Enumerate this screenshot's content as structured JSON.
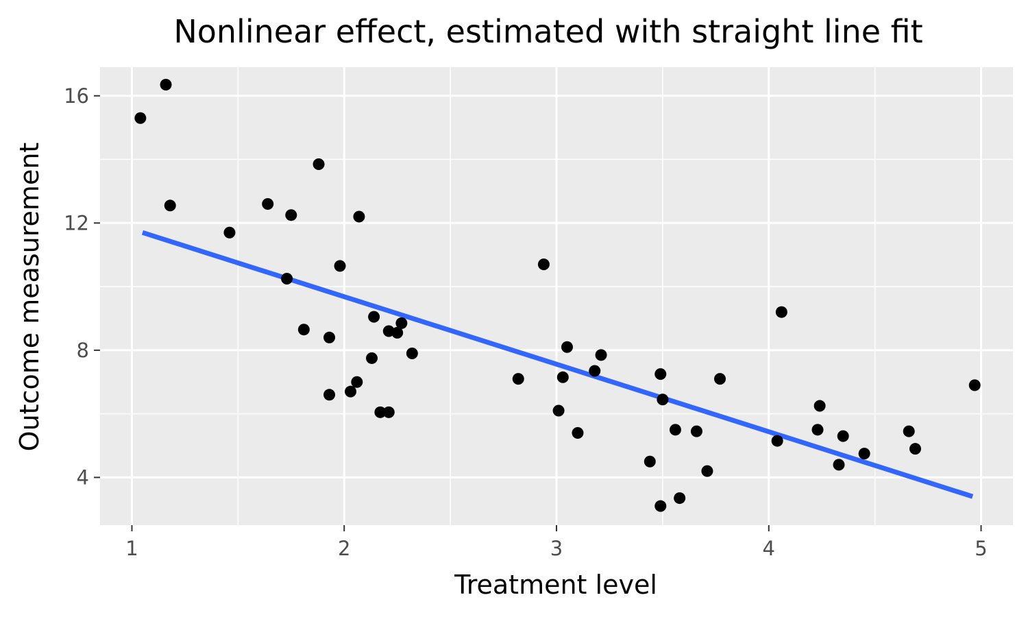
{
  "chart_data": {
    "type": "scatter",
    "title": "Nonlinear effect, estimated with straight line fit",
    "xlabel": "Treatment level",
    "ylabel": "Outcome measurement",
    "xlim": [
      0.85,
      5.15
    ],
    "ylim": [
      2.5,
      16.9
    ],
    "x_ticks": [
      1,
      2,
      3,
      4,
      5
    ],
    "y_ticks": [
      4,
      8,
      12,
      16
    ],
    "grid": true,
    "legend": "none",
    "points": [
      {
        "x": 1.04,
        "y": 15.3
      },
      {
        "x": 1.16,
        "y": 16.35
      },
      {
        "x": 1.18,
        "y": 12.55
      },
      {
        "x": 1.46,
        "y": 11.7
      },
      {
        "x": 1.64,
        "y": 12.6
      },
      {
        "x": 1.73,
        "y": 10.25
      },
      {
        "x": 1.75,
        "y": 12.25
      },
      {
        "x": 1.81,
        "y": 8.65
      },
      {
        "x": 1.88,
        "y": 13.85
      },
      {
        "x": 1.93,
        "y": 8.4
      },
      {
        "x": 1.93,
        "y": 6.6
      },
      {
        "x": 1.98,
        "y": 10.65
      },
      {
        "x": 2.03,
        "y": 6.7
      },
      {
        "x": 2.06,
        "y": 7.0
      },
      {
        "x": 2.07,
        "y": 12.2
      },
      {
        "x": 2.13,
        "y": 7.75
      },
      {
        "x": 2.14,
        "y": 9.05
      },
      {
        "x": 2.17,
        "y": 6.05
      },
      {
        "x": 2.21,
        "y": 6.05
      },
      {
        "x": 2.21,
        "y": 8.6
      },
      {
        "x": 2.25,
        "y": 8.55
      },
      {
        "x": 2.27,
        "y": 8.85
      },
      {
        "x": 2.32,
        "y": 7.9
      },
      {
        "x": 2.82,
        "y": 7.1
      },
      {
        "x": 2.94,
        "y": 10.7
      },
      {
        "x": 3.01,
        "y": 6.1
      },
      {
        "x": 3.03,
        "y": 7.15
      },
      {
        "x": 3.05,
        "y": 8.1
      },
      {
        "x": 3.1,
        "y": 5.4
      },
      {
        "x": 3.18,
        "y": 7.35
      },
      {
        "x": 3.21,
        "y": 7.85
      },
      {
        "x": 3.44,
        "y": 4.5
      },
      {
        "x": 3.49,
        "y": 7.25
      },
      {
        "x": 3.49,
        "y": 3.1
      },
      {
        "x": 3.5,
        "y": 6.45
      },
      {
        "x": 3.56,
        "y": 5.5
      },
      {
        "x": 3.58,
        "y": 3.35
      },
      {
        "x": 3.66,
        "y": 5.45
      },
      {
        "x": 3.71,
        "y": 4.2
      },
      {
        "x": 3.77,
        "y": 7.1
      },
      {
        "x": 4.04,
        "y": 5.15
      },
      {
        "x": 4.06,
        "y": 9.2
      },
      {
        "x": 4.23,
        "y": 5.5
      },
      {
        "x": 4.24,
        "y": 6.25
      },
      {
        "x": 4.33,
        "y": 4.4
      },
      {
        "x": 4.35,
        "y": 5.3
      },
      {
        "x": 4.45,
        "y": 4.75
      },
      {
        "x": 4.66,
        "y": 5.45
      },
      {
        "x": 4.69,
        "y": 4.9
      },
      {
        "x": 4.97,
        "y": 6.9
      }
    ],
    "fit_line": {
      "x": [
        1.05,
        4.96
      ],
      "y": [
        11.7,
        3.4
      ]
    },
    "colors": {
      "panel": "#EBEBEB",
      "grid": "#FFFFFF",
      "points": "#000000",
      "fit_line": "#3366FF"
    }
  }
}
